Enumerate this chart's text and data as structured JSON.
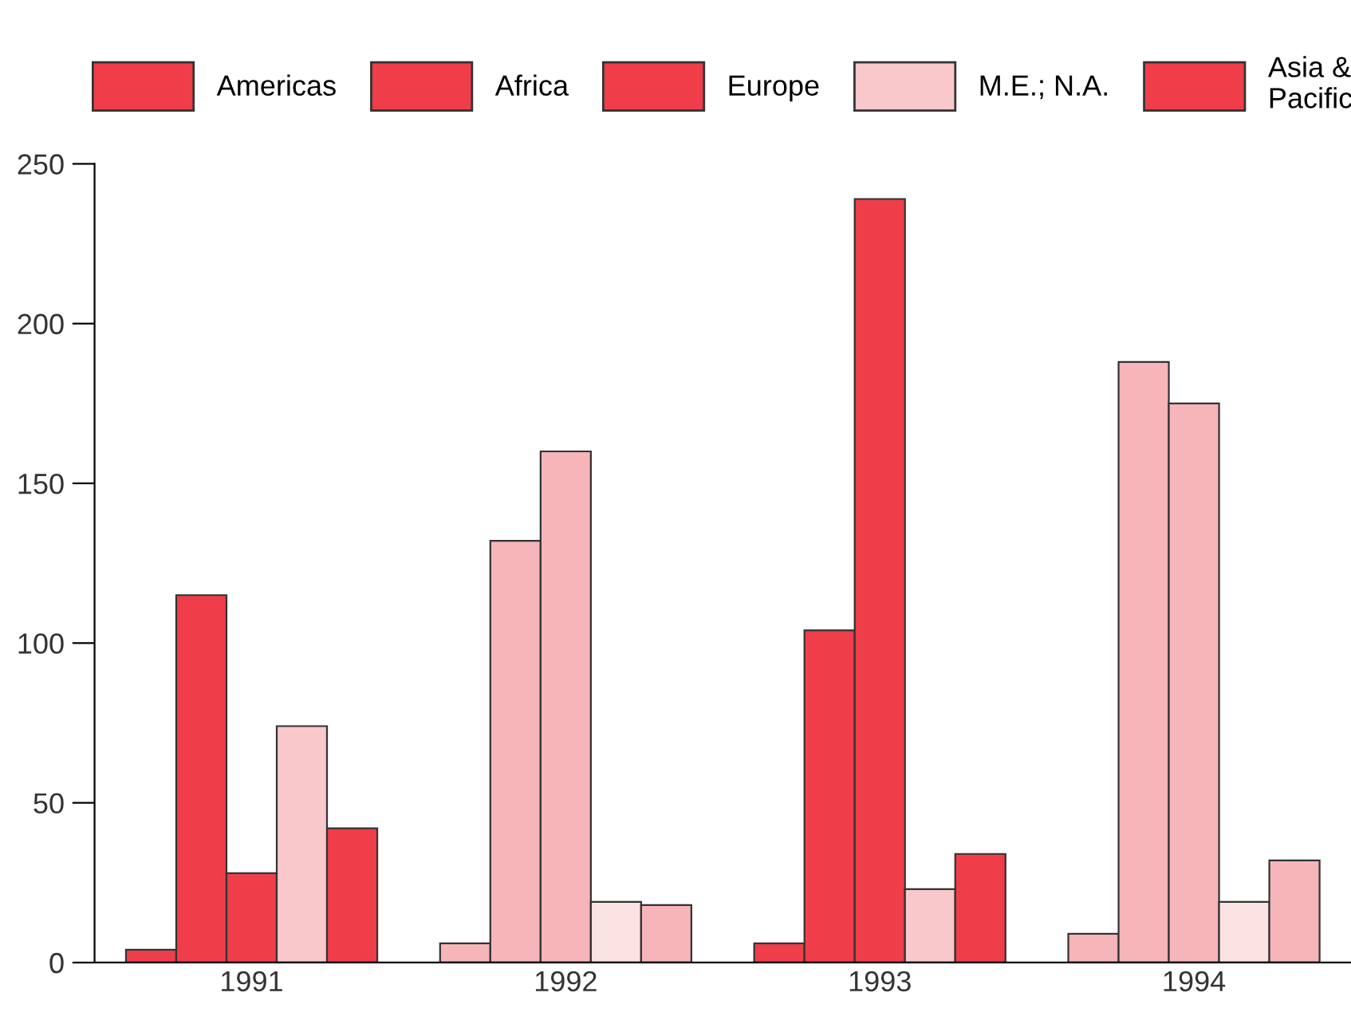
{
  "chart_data": {
    "type": "bar",
    "categories": [
      "1991",
      "1992",
      "1993",
      "1994"
    ],
    "series": [
      {
        "name": "Americas",
        "color": "#ef3e4a",
        "colors": [
          "#ef3e4a",
          "#f6b5b9",
          "#ef3e4a",
          "#f6b5b9"
        ],
        "values": [
          4,
          6,
          6,
          9
        ]
      },
      {
        "name": "Africa",
        "color": "#ef3e4a",
        "colors": [
          "#ef3e4a",
          "#f6b5b9",
          "#ef3e4a",
          "#f6b5b9"
        ],
        "values": [
          115,
          132,
          104,
          188
        ]
      },
      {
        "name": "Europe",
        "color": "#ef3e4a",
        "colors": [
          "#ef3e4a",
          "#f6b5b9",
          "#ef3e4a",
          "#f6b5b9"
        ],
        "values": [
          28,
          160,
          239,
          175
        ]
      },
      {
        "name": "M.E.; N.A.",
        "color": "#f8c8cb",
        "colors": [
          "#f8c8cb",
          "#fbe3e4",
          "#f8c8cb",
          "#fbe3e4"
        ],
        "values": [
          74,
          19,
          23,
          19
        ]
      },
      {
        "name": "Asia &\nPacific",
        "color": "#ef3e4a",
        "colors": [
          "#ef3e4a",
          "#f6b5b9",
          "#ef3e4a",
          "#f6b5b9"
        ],
        "values": [
          42,
          18,
          34,
          32
        ]
      }
    ],
    "ylim": [
      0,
      250
    ],
    "yticks": [
      0,
      50,
      100,
      150,
      200,
      250
    ],
    "grid": false,
    "legend": "top"
  }
}
